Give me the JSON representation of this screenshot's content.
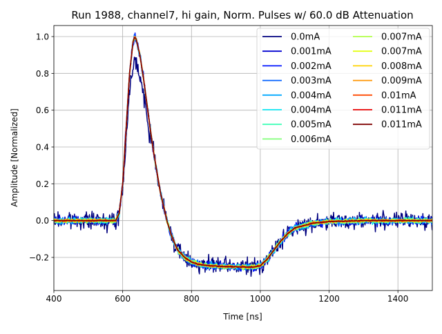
{
  "chart_data": {
    "type": "line",
    "title": "Run 1988, channel7, hi gain, Norm. Pulses w/ 60.0 dB Attenuation",
    "xlabel": "Time [ns]",
    "ylabel": "Amplitude [Normalized]",
    "xlim": [
      400,
      1500
    ],
    "ylim": [
      -0.38,
      1.06
    ],
    "x_ticks": [
      400,
      600,
      800,
      1000,
      1200,
      1400
    ],
    "y_ticks": [
      -0.2,
      0.0,
      0.2,
      0.4,
      0.6,
      0.8,
      1.0
    ],
    "x_tick_labels": [
      "400",
      "600",
      "800",
      "1000",
      "1200",
      "1400"
    ],
    "y_tick_labels": [
      "−0.2",
      "0.0",
      "0.2",
      "0.4",
      "0.6",
      "0.8",
      "1.0"
    ],
    "grid": true,
    "legend_position": "top-right",
    "pulse_shape": {
      "x": [
        400,
        580,
        590,
        600,
        610,
        620,
        630,
        635,
        640,
        650,
        660,
        670,
        680,
        690,
        700,
        710,
        720,
        730,
        740,
        750,
        760,
        780,
        800,
        820,
        850,
        900,
        950,
        980,
        1000,
        1020,
        1040,
        1060,
        1080,
        1100,
        1150,
        1200,
        1300,
        1400,
        1500
      ],
      "y": [
        0.0,
        0.0,
        0.04,
        0.2,
        0.5,
        0.8,
        0.97,
        1.0,
        0.98,
        0.9,
        0.78,
        0.64,
        0.5,
        0.37,
        0.26,
        0.15,
        0.07,
        -0.01,
        -0.07,
        -0.12,
        -0.16,
        -0.2,
        -0.225,
        -0.237,
        -0.245,
        -0.25,
        -0.252,
        -0.252,
        -0.245,
        -0.21,
        -0.16,
        -0.11,
        -0.07,
        -0.04,
        -0.015,
        -0.005,
        0.0,
        0.0,
        0.0
      ]
    },
    "noisy_series": "0.0mA",
    "series": [
      {
        "name": "0.0mA",
        "color": "#00007f"
      },
      {
        "name": "0.001mA",
        "color": "#0000d0"
      },
      {
        "name": "0.002mA",
        "color": "#0014ff"
      },
      {
        "name": "0.003mA",
        "color": "#0060ff"
      },
      {
        "name": "0.004mA",
        "color": "#00a8ff"
      },
      {
        "name": "0.004mA",
        "color": "#0de6f2"
      },
      {
        "name": "0.005mA",
        "color": "#3fffb7"
      },
      {
        "name": "0.006mA",
        "color": "#7fff77"
      },
      {
        "name": "0.007mA",
        "color": "#b0ff46"
      },
      {
        "name": "0.007mA",
        "color": "#e4ff13"
      },
      {
        "name": "0.008mA",
        "color": "#ffd200"
      },
      {
        "name": "0.009mA",
        "color": "#ff9400"
      },
      {
        "name": "0.01mA",
        "color": "#ff4800"
      },
      {
        "name": "0.011mA",
        "color": "#e80000"
      },
      {
        "name": "0.011mA",
        "color": "#7f0000"
      }
    ]
  }
}
